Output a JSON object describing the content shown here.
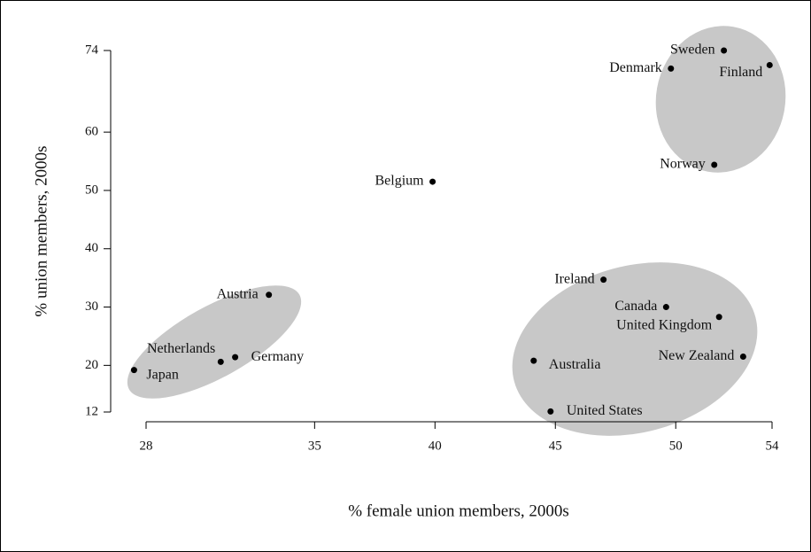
{
  "chart_data": {
    "type": "scatter",
    "xlabel": "% female union members, 2000s",
    "ylabel": "% union members, 2000s",
    "labels": [
      "Sweden",
      "Denmark",
      "Finland",
      "Norway",
      "Belgium",
      "Ireland",
      "Canada",
      "United Kingdom",
      "New Zealand",
      "Australia",
      "United States",
      "Austria",
      "Netherlands",
      "Germany",
      "Japan"
    ],
    "x": [
      52.0,
      49.8,
      53.9,
      51.6,
      39.9,
      47.0,
      49.6,
      51.8,
      52.8,
      44.1,
      44.8,
      33.1,
      31.1,
      31.7,
      27.5
    ],
    "y": [
      74,
      70.9,
      71.5,
      54.4,
      51.5,
      34.7,
      30,
      28.3,
      21.5,
      20.8,
      12.1,
      32.1,
      20.6,
      21.4,
      19.2
    ],
    "color": "#000000",
    "xlim": [
      28,
      54
    ],
    "xticks": [
      28,
      35,
      40,
      45,
      50,
      54
    ],
    "ylim": [
      12,
      74
    ],
    "yticks": [
      12,
      20,
      30,
      40,
      50,
      60,
      74
    ]
  }
}
